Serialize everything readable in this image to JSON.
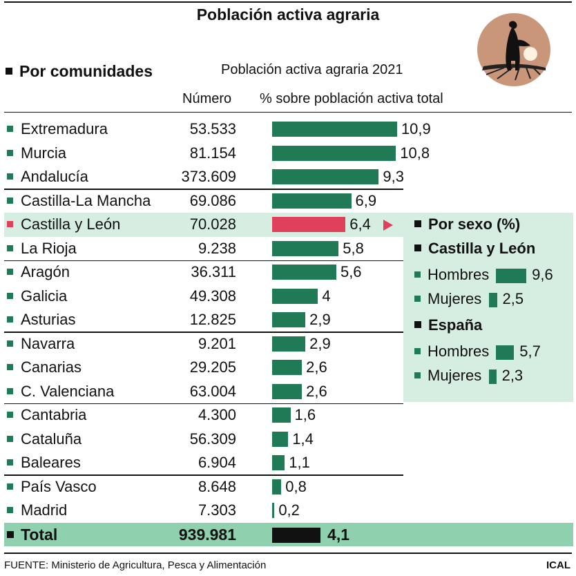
{
  "title": "Población activa agraria",
  "section_label": "Por comunidades",
  "subtitle": "Población activa agraria 2021",
  "col_number": "Número",
  "col_percent": "% sobre población activa total",
  "chart_data": {
    "type": "bar",
    "title": "Población activa agraria 2021",
    "value_label": "% sobre población activa total",
    "categories": [
      "Extremadura",
      "Murcia",
      "Andalucía",
      "Castilla-La Mancha",
      "Castilla y León",
      "La Rioja",
      "Aragón",
      "Galicia",
      "Asturias",
      "Navarra",
      "Canarias",
      "C. Valenciana",
      "Cantabria",
      "Cataluña",
      "Baleares",
      "País Vasco",
      "Madrid"
    ],
    "numero": [
      "53.533",
      "81.154",
      "373.609",
      "69.086",
      "70.028",
      "9.238",
      "36.311",
      "49.308",
      "12.825",
      "9.201",
      "29.205",
      "63.004",
      "4.300",
      "56.309",
      "6.904",
      "8.648",
      "7.303"
    ],
    "values": [
      10.9,
      10.8,
      9.3,
      6.9,
      6.4,
      5.8,
      5.6,
      4,
      2.9,
      2.9,
      2.6,
      2.6,
      1.6,
      1.4,
      1.1,
      0.8,
      0.2
    ],
    "value_labels": [
      "10,9",
      "10,8",
      "9,3",
      "6,9",
      "6,4",
      "5,8",
      "5,6",
      "4",
      "2,9",
      "2,9",
      "2,6",
      "2,6",
      "1,6",
      "1,4",
      "1,1",
      "0,8",
      "0,2"
    ],
    "highlight": "Castilla y León",
    "total": {
      "label": "Total",
      "numero": "939.981",
      "value": 4.1,
      "value_label": "4,1"
    }
  },
  "sex_panel": {
    "heading": "Por sexo (%)",
    "groups": [
      {
        "name": "Castilla y León",
        "rows": [
          {
            "label": "Hombres",
            "value": 9.6,
            "value_label": "9,6"
          },
          {
            "label": "Mujeres",
            "value": 2.5,
            "value_label": "2,5"
          }
        ]
      },
      {
        "name": "España",
        "rows": [
          {
            "label": "Hombres",
            "value": 5.7,
            "value_label": "5,7"
          },
          {
            "label": "Mujeres",
            "value": 2.3,
            "value_label": "2,3"
          }
        ]
      }
    ]
  },
  "colors": {
    "bar": "#1f7a55",
    "highlight": "#e0405a",
    "panel": "#d6ede1",
    "total_band": "#8fd0ae"
  },
  "source": "FUENTE:  Ministerio de Agricultura, Pesca y Alimentación",
  "credit": "ICAL"
}
